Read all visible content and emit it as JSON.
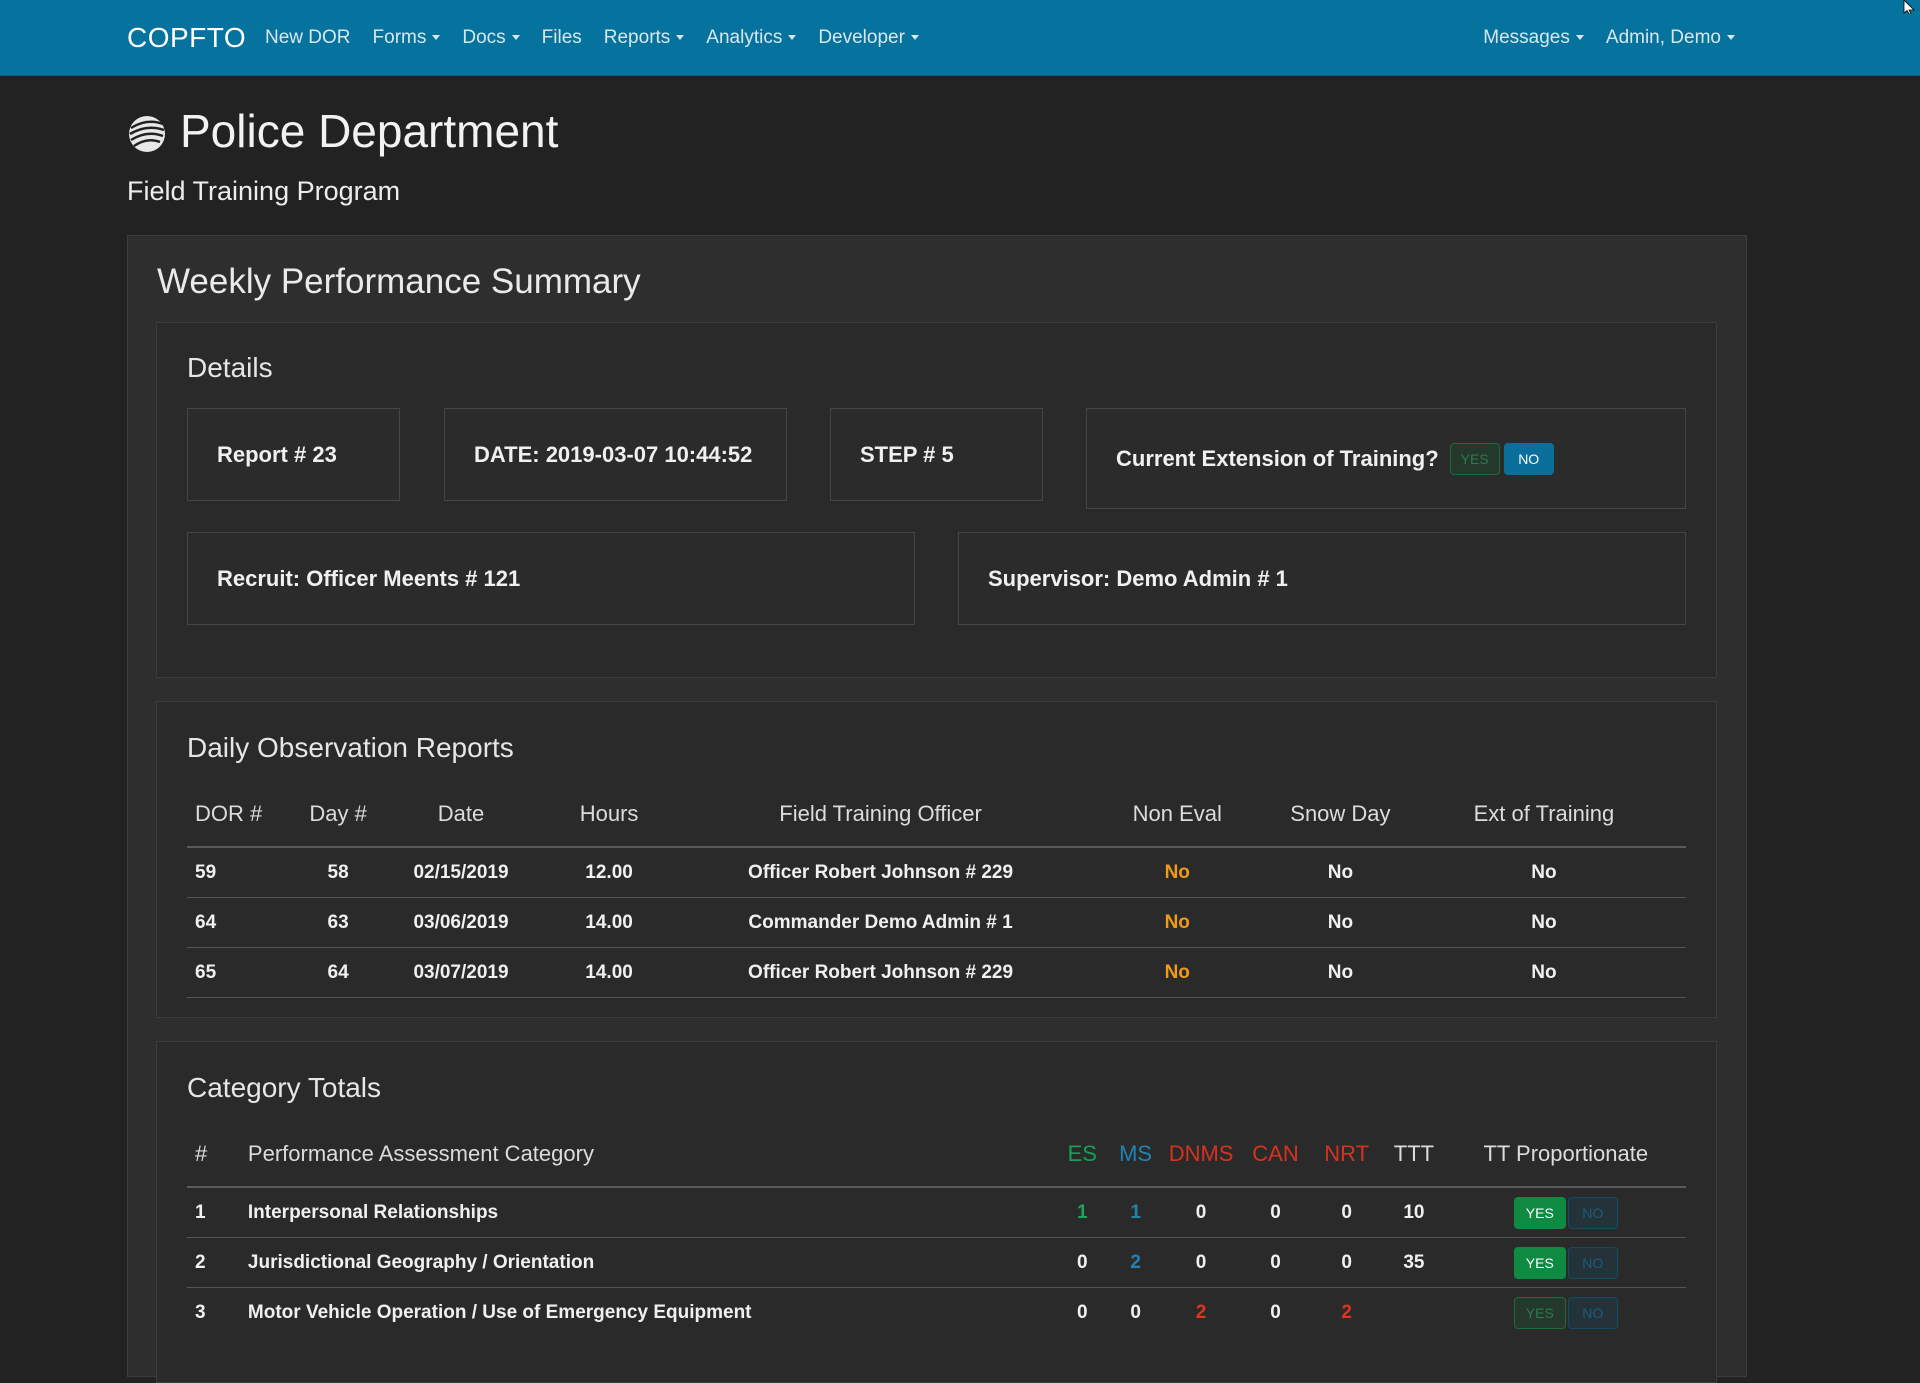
{
  "navbar": {
    "brand": "COPFTO",
    "items": [
      {
        "label": "New DOR",
        "dropdown": false
      },
      {
        "label": "Forms",
        "dropdown": true
      },
      {
        "label": "Docs",
        "dropdown": true
      },
      {
        "label": "Files",
        "dropdown": false
      },
      {
        "label": "Reports",
        "dropdown": true
      },
      {
        "label": "Analytics",
        "dropdown": true
      },
      {
        "label": "Developer",
        "dropdown": true
      }
    ],
    "right_items": [
      {
        "label": "Messages",
        "dropdown": true
      },
      {
        "label": "Admin, Demo",
        "dropdown": true
      }
    ]
  },
  "header": {
    "title": "Police Department",
    "subtitle": "Field Training Program"
  },
  "summary": {
    "title": "Weekly Performance Summary",
    "details": {
      "title": "Details",
      "report": "Report # 23",
      "date": "DATE: 2019-03-07 10:44:52",
      "step": "STEP # 5",
      "extension_label": "Current Extension of Training?",
      "yes_label": "YES",
      "no_label": "NO",
      "extension_selected": "NO",
      "recruit": "Recruit: Officer Meents # 121",
      "supervisor": "Supervisor: Demo Admin # 1"
    },
    "dor": {
      "title": "Daily Observation Reports",
      "headers": [
        "DOR #",
        "Day #",
        "Date",
        "Hours",
        "Field Training Officer",
        "Non Eval",
        "Snow Day",
        "Ext of Training"
      ],
      "rows": [
        [
          "59",
          "58",
          "02/15/2019",
          "12.00",
          "Officer Robert Johnson # 229",
          "No",
          "No",
          "No"
        ],
        [
          "64",
          "63",
          "03/06/2019",
          "14.00",
          "Commander Demo Admin # 1",
          "No",
          "No",
          "No"
        ],
        [
          "65",
          "64",
          "03/07/2019",
          "14.00",
          "Officer Robert Johnson # 229",
          "No",
          "No",
          "No"
        ]
      ]
    },
    "categories": {
      "title": "Category Totals",
      "headers": [
        "#",
        "Performance Assessment Category",
        "ES",
        "MS",
        "DNMS",
        "CAN",
        "NRT",
        "TTT",
        "TT Proportionate"
      ],
      "rows": [
        {
          "num": "1",
          "name": "Interpersonal Relationships",
          "es": "1",
          "ms": "1",
          "dnms": "0",
          "can": "0",
          "nrt": "0",
          "ttt": "10",
          "prop": "YES"
        },
        {
          "num": "2",
          "name": "Jurisdictional Geography / Orientation",
          "es": "0",
          "ms": "2",
          "dnms": "0",
          "can": "0",
          "nrt": "0",
          "ttt": "35",
          "prop": "YES"
        },
        {
          "num": "3",
          "name": "Motor Vehicle Operation / Use of Emergency Equipment",
          "es": "0",
          "ms": "0",
          "dnms": "2",
          "can": "0",
          "nrt": "2",
          "ttt": "",
          "prop": "none"
        }
      ]
    }
  },
  "colors": {
    "navbar": "#06739e",
    "background": "#222222",
    "es": "#16a05a",
    "ms": "#1f83b3",
    "dnms": "#d6331f",
    "non_eval": "#f09a1a"
  }
}
